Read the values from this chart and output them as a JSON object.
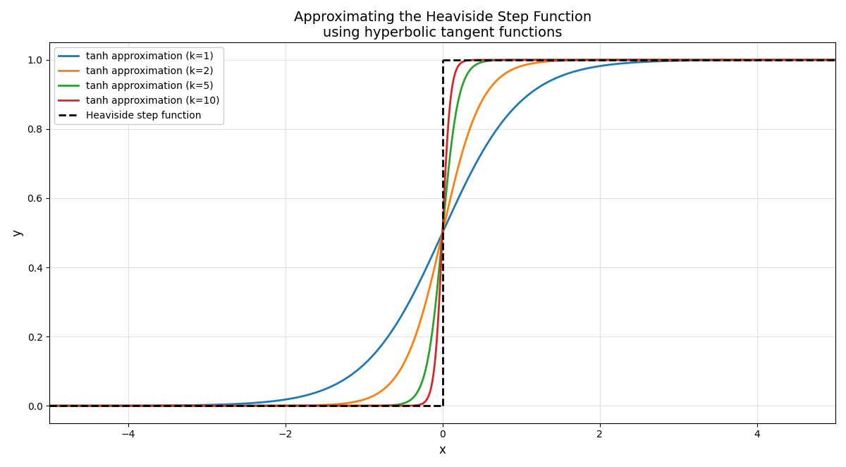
{
  "title": "Approximating the Heaviside Step Function\nusing hyperbolic tangent functions",
  "xlabel": "x",
  "ylabel": "y",
  "xlim": [
    -5,
    5
  ],
  "ylim": [
    -0.05,
    1.05
  ],
  "k_values": [
    1,
    2,
    5,
    10
  ],
  "colors": [
    "#1f77b4",
    "#ff7f0e",
    "#2ca02c",
    "#d62728"
  ],
  "line_width": 2.0,
  "heaviside_color": "black",
  "heaviside_lw": 2.0,
  "legend_labels": [
    "tanh approximation (k=1)",
    "tanh approximation (k=2)",
    "tanh approximation (k=5)",
    "tanh approximation (k=10)",
    "Heaviside step function"
  ],
  "grid": true,
  "title_fontsize": 14,
  "label_fontsize": 12,
  "legend_fontsize": 10,
  "yticks": [
    0.0,
    0.2,
    0.4,
    0.6,
    0.8,
    1.0
  ],
  "facecolor": "#ffffff",
  "grid_color": "#e0e0e0",
  "grid_lw": 0.8
}
